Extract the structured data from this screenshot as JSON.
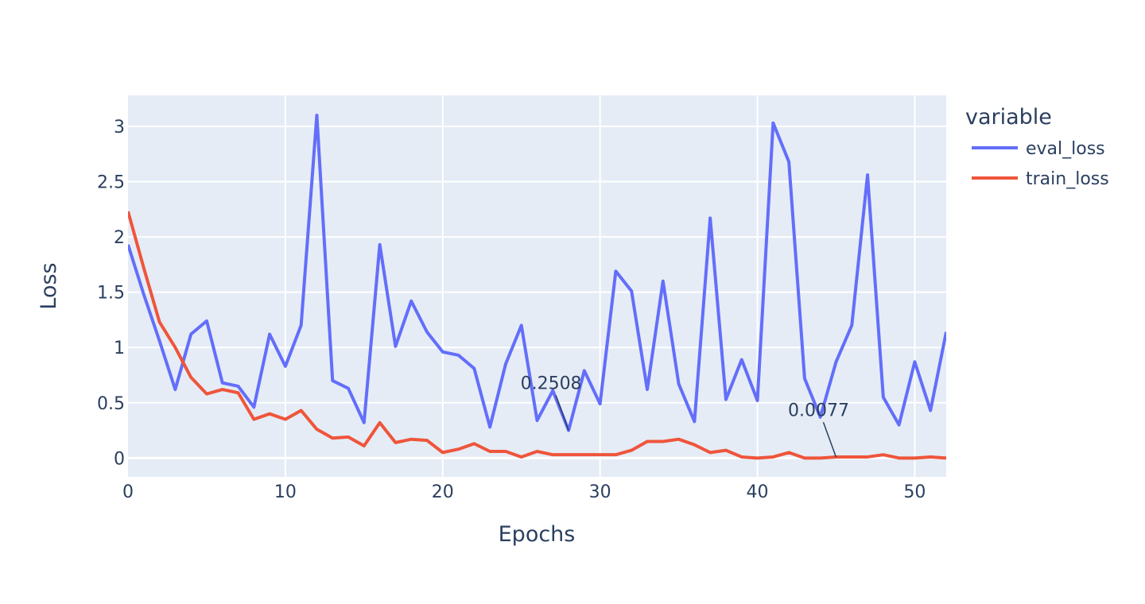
{
  "chart_data": {
    "type": "line",
    "xlabel": "Epochs",
    "ylabel": "Loss",
    "xlim": [
      0,
      52
    ],
    "ylim": [
      -0.17,
      3.28
    ],
    "x_ticks": [
      0,
      10,
      20,
      30,
      40,
      50
    ],
    "x_tick_labels": [
      "0",
      "10",
      "20",
      "30",
      "40",
      "50"
    ],
    "y_ticks": [
      0,
      0.5,
      1,
      1.5,
      2,
      2.5,
      3
    ],
    "y_tick_labels": [
      "0",
      "0.5",
      "1",
      "1.5",
      "2",
      "2.5",
      "3"
    ],
    "grid": true,
    "legend": {
      "title": "variable",
      "placement": "right"
    },
    "x": [
      0,
      1,
      2,
      3,
      4,
      5,
      6,
      7,
      8,
      9,
      10,
      11,
      12,
      13,
      14,
      15,
      16,
      17,
      18,
      19,
      20,
      21,
      22,
      23,
      24,
      25,
      26,
      27,
      28,
      29,
      30,
      31,
      32,
      33,
      34,
      35,
      36,
      37,
      38,
      39,
      40,
      41,
      42,
      43,
      44,
      45,
      46,
      47,
      48,
      49,
      50,
      51,
      52
    ],
    "series": [
      {
        "name": "eval_loss",
        "color": "#636efa",
        "values": [
          1.93,
          1.48,
          1.06,
          0.62,
          1.12,
          1.24,
          0.68,
          0.65,
          0.46,
          1.12,
          0.83,
          1.2,
          3.1,
          0.7,
          0.63,
          0.32,
          1.93,
          1.01,
          1.42,
          1.14,
          0.96,
          0.93,
          0.81,
          0.28,
          0.85,
          1.2,
          0.34,
          0.61,
          0.25,
          0.79,
          0.49,
          1.69,
          1.51,
          0.62,
          1.6,
          0.67,
          0.33,
          2.17,
          0.53,
          0.89,
          0.52,
          3.03,
          2.68,
          0.72,
          0.37,
          0.87,
          1.2,
          2.56,
          0.55,
          0.3,
          0.87,
          0.43,
          1.14
        ]
      },
      {
        "name": "train_loss",
        "color": "#ef553b",
        "values": [
          2.23,
          1.72,
          1.23,
          1.0,
          0.73,
          0.58,
          0.62,
          0.59,
          0.35,
          0.4,
          0.35,
          0.43,
          0.26,
          0.18,
          0.19,
          0.11,
          0.32,
          0.14,
          0.17,
          0.16,
          0.05,
          0.08,
          0.13,
          0.06,
          0.06,
          0.01,
          0.06,
          0.03,
          0.03,
          0.03,
          0.03,
          0.03,
          0.07,
          0.15,
          0.15,
          0.17,
          0.12,
          0.05,
          0.07,
          0.01,
          0.0,
          0.01,
          0.05,
          0.0,
          0.0,
          0.01,
          0.01,
          0.01,
          0.03,
          0.0,
          0.0,
          0.01,
          0.0
        ]
      }
    ],
    "annotations": [
      {
        "text": "0.2508",
        "x": 28,
        "y": 0.2508
      },
      {
        "text": "0.0077",
        "x": 45,
        "y": 0.0077
      }
    ]
  }
}
